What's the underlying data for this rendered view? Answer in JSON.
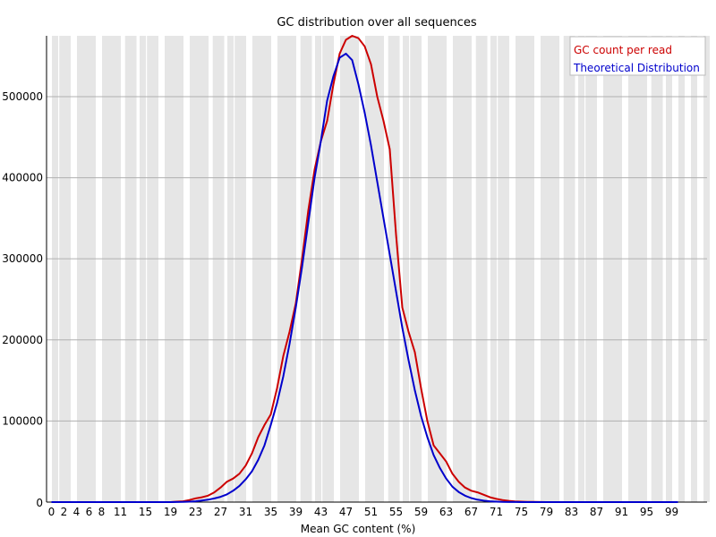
{
  "chart_data": {
    "type": "line",
    "title": "GC distribution over all sequences",
    "xlabel": "Mean GC content (%)",
    "ylabel": "",
    "xlim": [
      0,
      100
    ],
    "ylim": [
      0,
      575000
    ],
    "grid": true,
    "legend_position": "top-right",
    "x_tick_labels": [
      "0",
      "2",
      "4",
      "6",
      "8",
      "11",
      "15",
      "19",
      "23",
      "27",
      "31",
      "35",
      "39",
      "43",
      "47",
      "51",
      "55",
      "59",
      "63",
      "67",
      "71",
      "75",
      "79",
      "83",
      "87",
      "91",
      "95",
      "99"
    ],
    "y_tick_labels": [
      "0",
      "100000",
      "200000",
      "300000",
      "400000",
      "500000"
    ],
    "y_tick_values": [
      0,
      100000,
      200000,
      300000,
      400000,
      500000
    ],
    "series": [
      {
        "name": "GC count per read",
        "color": "#cc0000",
        "x": [
          0,
          1,
          2,
          3,
          4,
          5,
          6,
          7,
          8,
          9,
          10,
          11,
          12,
          13,
          14,
          15,
          16,
          17,
          18,
          19,
          20,
          21,
          22,
          23,
          24,
          25,
          26,
          27,
          28,
          29,
          30,
          31,
          32,
          33,
          34,
          35,
          36,
          37,
          38,
          39,
          40,
          41,
          42,
          43,
          44,
          45,
          46,
          47,
          48,
          49,
          50,
          51,
          52,
          53,
          54,
          55,
          56,
          57,
          58,
          59,
          60,
          61,
          62,
          63,
          64,
          65,
          66,
          67,
          68,
          69,
          70,
          71,
          72,
          73,
          74,
          75,
          76,
          77,
          78,
          79,
          80,
          81,
          82,
          83,
          84,
          85,
          86,
          87,
          88,
          89,
          90,
          91,
          92,
          93,
          94,
          95,
          96,
          97,
          98,
          99,
          100
        ],
        "y": [
          0,
          0,
          0,
          0,
          0,
          0,
          0,
          0,
          0,
          0,
          0,
          0,
          0,
          0,
          0,
          0,
          0,
          0,
          0,
          0,
          500,
          1000,
          2500,
          4500,
          6000,
          8000,
          12000,
          18000,
          25000,
          29000,
          35000,
          45000,
          60000,
          80000,
          95000,
          108000,
          140000,
          180000,
          210000,
          245000,
          300000,
          360000,
          410000,
          445000,
          470000,
          515000,
          553000,
          570000,
          575000,
          572000,
          562000,
          540000,
          500000,
          470000,
          435000,
          330000,
          240000,
          210000,
          185000,
          140000,
          100000,
          70000,
          60000,
          50000,
          35000,
          25000,
          18000,
          14000,
          12000,
          9000,
          6000,
          4000,
          2500,
          1500,
          800,
          500,
          300,
          200,
          100,
          0,
          0,
          0,
          0,
          0,
          0,
          0,
          0,
          0,
          0,
          0,
          0,
          0,
          0,
          0,
          0,
          0,
          0,
          0,
          0,
          0,
          0
        ]
      },
      {
        "name": "Theoretical Distribution",
        "color": "#0000cc",
        "x": [
          0,
          1,
          2,
          3,
          4,
          5,
          6,
          7,
          8,
          9,
          10,
          11,
          12,
          13,
          14,
          15,
          16,
          17,
          18,
          19,
          20,
          21,
          22,
          23,
          24,
          25,
          26,
          27,
          28,
          29,
          30,
          31,
          32,
          33,
          34,
          35,
          36,
          37,
          38,
          39,
          40,
          41,
          42,
          43,
          44,
          45,
          46,
          47,
          48,
          49,
          50,
          51,
          52,
          53,
          54,
          55,
          56,
          57,
          58,
          59,
          60,
          61,
          62,
          63,
          64,
          65,
          66,
          67,
          68,
          69,
          70,
          71,
          72,
          73,
          74,
          75,
          76,
          77,
          78,
          79,
          80,
          81,
          82,
          83,
          84,
          85,
          86,
          87,
          88,
          89,
          90,
          91,
          92,
          93,
          94,
          95,
          96,
          97,
          98,
          99,
          100
        ],
        "y": [
          0,
          0,
          0,
          0,
          0,
          0,
          0,
          0,
          0,
          0,
          0,
          0,
          0,
          0,
          0,
          0,
          0,
          0,
          0,
          0,
          100,
          200,
          500,
          1000,
          2000,
          3000,
          4500,
          6500,
          9500,
          14000,
          20000,
          28000,
          38000,
          52000,
          70000,
          95000,
          122000,
          155000,
          195000,
          240000,
          290000,
          345000,
          400000,
          445000,
          495000,
          525000,
          548000,
          553000,
          545000,
          515000,
          480000,
          440000,
          395000,
          350000,
          305000,
          260000,
          215000,
          175000,
          138000,
          106000,
          80000,
          58000,
          42000,
          29000,
          19000,
          12500,
          8000,
          5000,
          3000,
          1800,
          1000,
          500,
          250,
          120,
          60,
          0,
          0,
          0,
          0,
          0,
          0,
          0,
          0,
          0,
          0,
          0,
          0,
          0,
          0,
          0,
          0,
          0,
          0,
          0,
          0,
          0,
          0,
          0,
          0,
          0,
          0
        ]
      }
    ]
  }
}
